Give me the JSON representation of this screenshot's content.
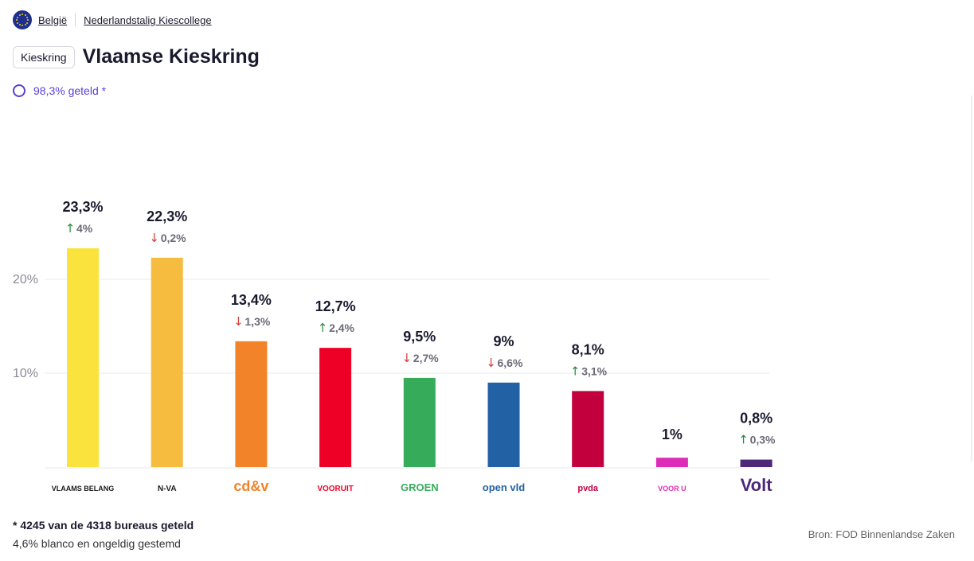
{
  "breadcrumb": {
    "country": "België",
    "college": "Nederlandstalig Kiescollege"
  },
  "header": {
    "chip": "Kieskring",
    "title": "Vlaamse Kieskring"
  },
  "progress": {
    "label": "98,3% geteld *",
    "value": 98.3
  },
  "footer": {
    "bureaus": "* 4245 van de 4318 bureaus geteld",
    "blanco": "4,6% blanco en ongeldig gestemd",
    "source": "Bron: FOD Binnenlandse Zaken"
  },
  "chart_data": {
    "type": "bar",
    "ylim": [
      0,
      25
    ],
    "yticks": [
      10,
      20
    ],
    "ytick_labels": [
      "10%",
      "20%"
    ],
    "grid": true,
    "categories": [
      "Vlaams Belang",
      "N-VA",
      "cd&v",
      "Vooruit",
      "Groen",
      "Open Vld",
      "PVDA",
      "Voor U",
      "Volt"
    ],
    "values": [
      23.3,
      22.3,
      13.4,
      12.7,
      9.5,
      9.0,
      8.1,
      1.0,
      0.8
    ],
    "value_labels": [
      "23,3%",
      "22,3%",
      "13,4%",
      "12,7%",
      "9,5%",
      "9%",
      "8,1%",
      "1%",
      "0,8%"
    ],
    "changes": [
      "4%",
      "0,2%",
      "1,3%",
      "2,4%",
      "2,7%",
      "6,6%",
      "3,1%",
      "",
      "0,3%"
    ],
    "change_dirs": [
      "up",
      "down",
      "down",
      "up",
      "down",
      "down",
      "up",
      "",
      "up"
    ],
    "colors": [
      "#f9e33c",
      "#f5bc3f",
      "#f28329",
      "#ee0026",
      "#36ac5b",
      "#2361a5",
      "#c3003e",
      "#dd2db8",
      "#4d2778"
    ],
    "logo_texts": [
      "VLAAMS BELANG",
      "N-VA",
      "cd&v",
      "VOORUIT",
      "GROEN",
      "open vld",
      "pvda",
      "VOOR U",
      "Volt"
    ],
    "up_color": "#2e8b3e",
    "down_color": "#d83b3b"
  }
}
